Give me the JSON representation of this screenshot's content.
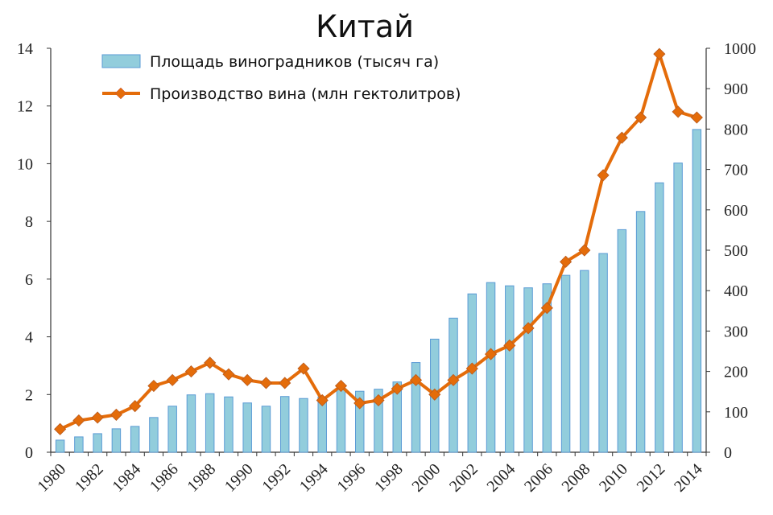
{
  "chart_data": {
    "type": "bar+line",
    "title": "Китай",
    "x": [
      1980,
      1981,
      1982,
      1983,
      1984,
      1985,
      1986,
      1987,
      1988,
      1989,
      1990,
      1991,
      1992,
      1993,
      1994,
      1995,
      1996,
      1997,
      1998,
      1999,
      2000,
      2001,
      2002,
      2003,
      2004,
      2005,
      2006,
      2007,
      2008,
      2009,
      2010,
      2011,
      2012,
      2013,
      2014
    ],
    "x_tick_labels": [
      "1980",
      "1982",
      "1984",
      "1986",
      "1988",
      "1990",
      "1992",
      "1994",
      "1996",
      "1998",
      "2000",
      "2002",
      "2004",
      "2006",
      "2008",
      "2010",
      "2012",
      "2014"
    ],
    "y_left": {
      "range": [
        0,
        14
      ],
      "ticks": [
        "0",
        "2",
        "4",
        "6",
        "8",
        "10",
        "12",
        "14"
      ]
    },
    "y_right": {
      "range": [
        0,
        1000
      ],
      "ticks": [
        "0",
        "100",
        "200",
        "300",
        "400",
        "500",
        "600",
        "700",
        "800",
        "900",
        "1000"
      ]
    },
    "series": [
      {
        "name": "Площадь виноградников (тысяч га)",
        "kind": "bar",
        "axis": "right",
        "color": "#92cddc",
        "values": [
          30,
          38,
          46,
          58,
          64,
          86,
          114,
          142,
          145,
          137,
          122,
          114,
          138,
          133,
          137,
          158,
          151,
          156,
          174,
          222,
          280,
          332,
          392,
          420,
          412,
          407,
          417,
          438,
          450,
          492,
          551,
          596,
          667,
          716,
          799
        ]
      },
      {
        "name": "Производство вина (млн гектолитров)",
        "kind": "line",
        "axis": "left",
        "color": "#e46c0a",
        "values": [
          0.8,
          1.1,
          1.2,
          1.3,
          1.6,
          2.3,
          2.5,
          2.8,
          3.1,
          2.7,
          2.5,
          2.4,
          2.4,
          2.9,
          1.8,
          2.3,
          1.7,
          1.8,
          2.2,
          2.5,
          2.0,
          2.5,
          2.9,
          3.4,
          3.7,
          4.3,
          5.0,
          6.6,
          7.0,
          9.6,
          10.9,
          11.6,
          13.8,
          11.8,
          11.6
        ]
      }
    ],
    "grid": false,
    "legend_position": "top-left"
  }
}
